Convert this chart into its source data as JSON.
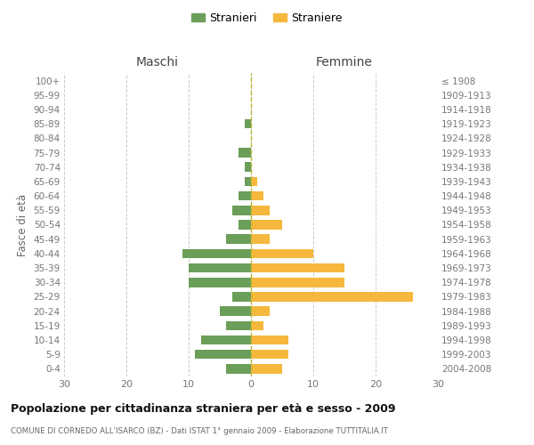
{
  "age_groups": [
    "0-4",
    "5-9",
    "10-14",
    "15-19",
    "20-24",
    "25-29",
    "30-34",
    "35-39",
    "40-44",
    "45-49",
    "50-54",
    "55-59",
    "60-64",
    "65-69",
    "70-74",
    "75-79",
    "80-84",
    "85-89",
    "90-94",
    "95-99",
    "100+"
  ],
  "birth_years": [
    "2004-2008",
    "1999-2003",
    "1994-1998",
    "1989-1993",
    "1984-1988",
    "1979-1983",
    "1974-1978",
    "1969-1973",
    "1964-1968",
    "1959-1963",
    "1954-1958",
    "1949-1953",
    "1944-1948",
    "1939-1943",
    "1934-1938",
    "1929-1933",
    "1924-1928",
    "1919-1923",
    "1914-1918",
    "1909-1913",
    "≤ 1908"
  ],
  "males": [
    4,
    9,
    8,
    4,
    5,
    3,
    10,
    10,
    11,
    4,
    2,
    3,
    2,
    1,
    1,
    2,
    0,
    1,
    0,
    0,
    0
  ],
  "females": [
    5,
    6,
    6,
    2,
    3,
    26,
    15,
    15,
    10,
    3,
    5,
    3,
    2,
    1,
    0,
    0,
    0,
    0,
    0,
    0,
    0
  ],
  "male_color": "#6b9e58",
  "female_color": "#f5b83d",
  "grid_color": "#cccccc",
  "center_line_color": "#b8b830",
  "title": "Popolazione per cittadinanza straniera per età e sesso - 2009",
  "subtitle": "COMUNE DI CORNEDO ALL'ISARCO (BZ) - Dati ISTAT 1° gennaio 2009 - Elaborazione TUTTITALIA.IT",
  "col_left": "Maschi",
  "col_right": "Femmine",
  "ylabel_left": "Fasce di età",
  "legend_male": "Stranieri",
  "legend_female": "Straniere",
  "xlim": 30,
  "bg_color": "#ffffff"
}
